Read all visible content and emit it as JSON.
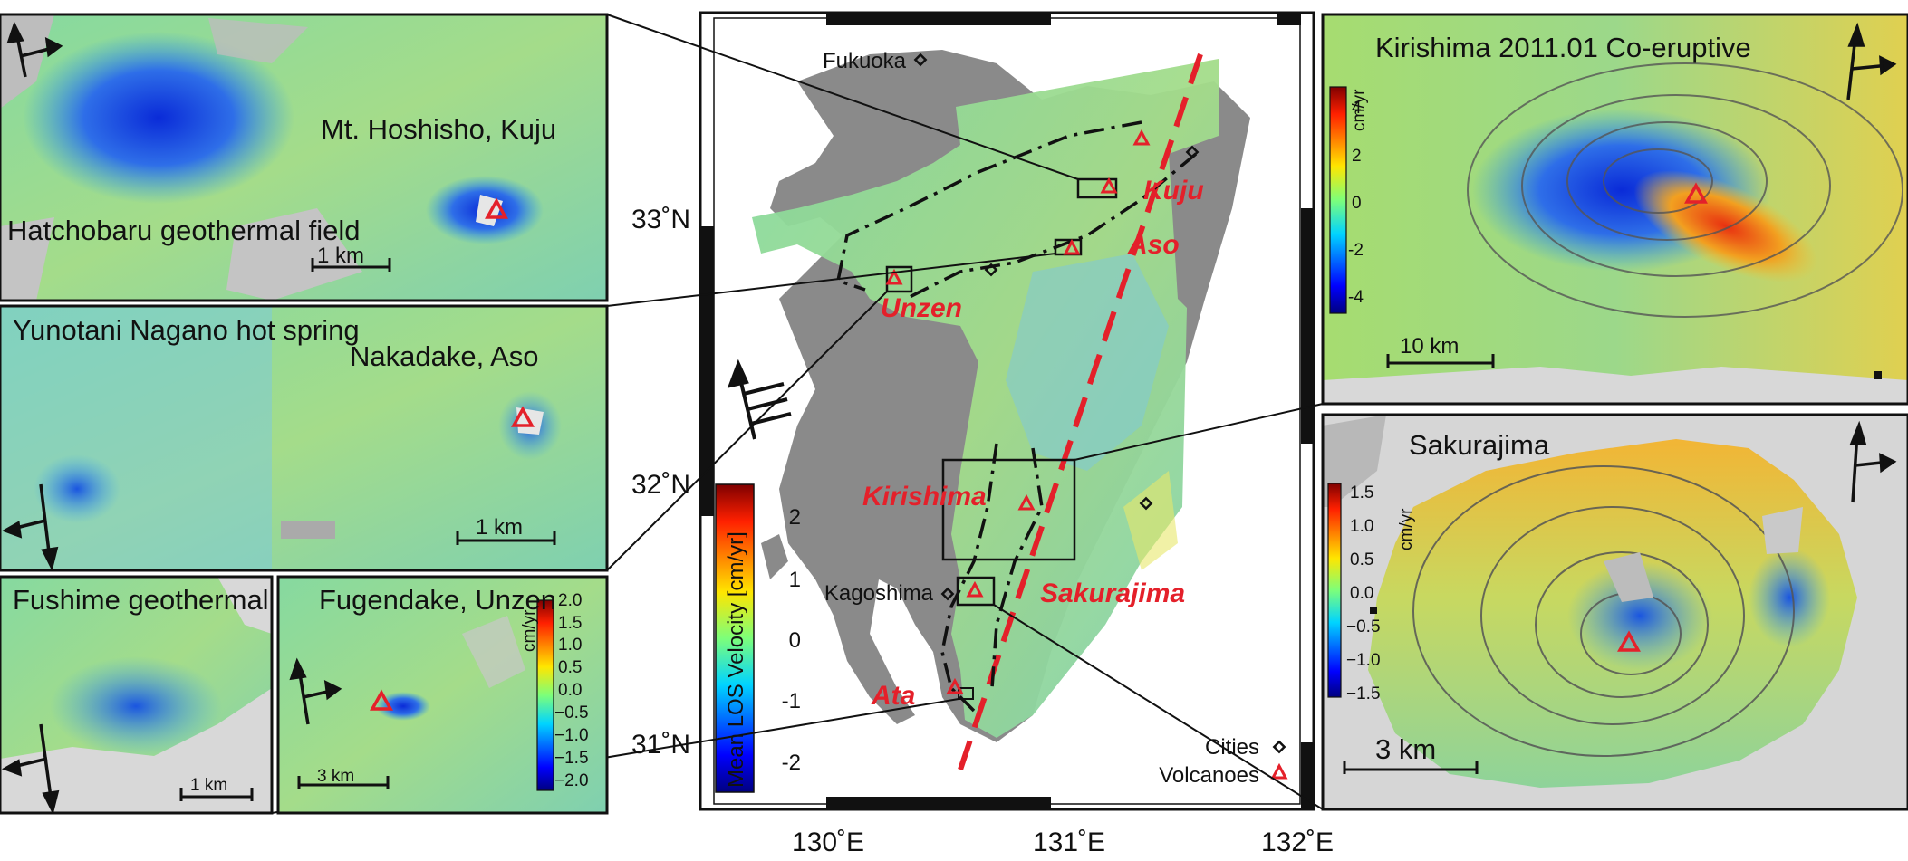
{
  "main_map": {
    "lat_labels": [
      "33˚N",
      "32˚N",
      "31˚N"
    ],
    "lon_labels": [
      "130˚E",
      "131˚E",
      "132˚E"
    ],
    "cities": [
      "Fukuoka",
      "Kagoshima"
    ],
    "volcanoes": [
      "Kuju",
      "Aso",
      "Unzen",
      "Kirishima",
      "Sakurajima",
      "Ata"
    ],
    "legend": {
      "cities": "Cities",
      "volcanoes": "Volcanoes"
    },
    "colorbar": {
      "label": "Mean LOS Velocity [cm/yr]",
      "ticks": [
        "2",
        "1",
        "0",
        "-1",
        "-2"
      ]
    }
  },
  "insets": {
    "kuju": {
      "title": "Mt. Hoshisho, Kuju",
      "subtitle": "Hatchobaru geothermal field",
      "scale": "1 km"
    },
    "aso": {
      "title": "Nakadake, Aso",
      "subtitle": "Yunotani Nagano hot spring",
      "scale": "1 km"
    },
    "fushime": {
      "title": "Fushime geothermal field",
      "scale": "1 km"
    },
    "unzen": {
      "title": "Fugendake, Unzen",
      "scale": "3 km",
      "colorbar_unit": "cm/yr",
      "colorbar_ticks": [
        "2.0",
        "1.5",
        "1.0",
        "0.5",
        "0.0",
        "−0.5",
        "−1.0",
        "−1.5",
        "−2.0"
      ]
    },
    "kirishima": {
      "title": "Kirishima 2011.01 Co-eruptive",
      "scale": "10 km",
      "colorbar_unit": "cm/yr",
      "colorbar_ticks": [
        "4",
        "2",
        "0",
        "-2",
        "-4"
      ]
    },
    "sakurajima": {
      "title": "Sakurajima",
      "scale": "3 km",
      "colorbar_unit": "cm/yr",
      "colorbar_ticks": [
        "1.5",
        "1.0",
        "0.5",
        "0.0",
        "−0.5",
        "−1.0",
        "−1.5"
      ]
    }
  },
  "colors": {
    "volcano": "#e4202a",
    "frame": "#111111"
  }
}
